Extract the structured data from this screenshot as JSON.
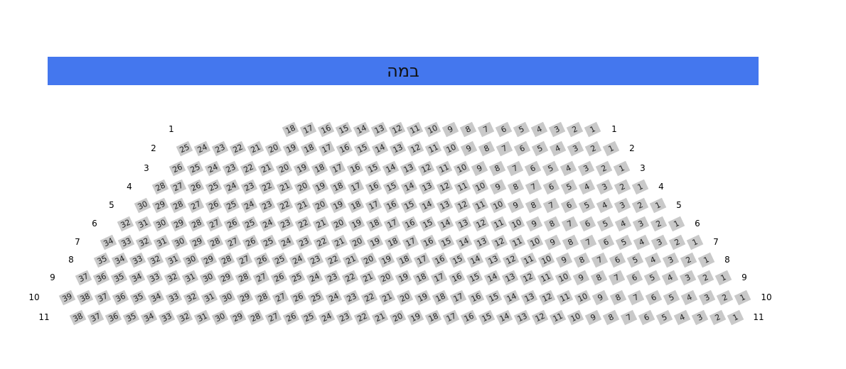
{
  "stage": {
    "label": "במה",
    "color": "#4477ee"
  },
  "seat_color": "#c9c9c9",
  "rows": [
    {
      "label": "1",
      "seats": [
        18,
        17,
        16,
        15,
        14,
        13,
        12,
        11,
        10,
        9,
        8,
        7,
        6,
        5,
        4,
        3,
        2,
        1
      ]
    },
    {
      "label": "2",
      "seats": [
        25,
        24,
        23,
        22,
        21,
        20,
        19,
        18,
        17,
        16,
        15,
        14,
        13,
        12,
        11,
        10,
        9,
        8,
        7,
        6,
        5,
        4,
        3,
        2,
        1
      ]
    },
    {
      "label": "3",
      "seats": [
        26,
        25,
        24,
        23,
        22,
        21,
        20,
        19,
        18,
        17,
        16,
        15,
        14,
        13,
        12,
        11,
        10,
        9,
        8,
        7,
        6,
        5,
        4,
        3,
        2,
        1
      ]
    },
    {
      "label": "4",
      "seats": [
        28,
        27,
        26,
        25,
        24,
        23,
        22,
        21,
        20,
        19,
        18,
        17,
        16,
        15,
        14,
        13,
        12,
        11,
        10,
        9,
        8,
        7,
        6,
        5,
        4,
        3,
        2,
        1
      ]
    },
    {
      "label": "5",
      "seats": [
        30,
        29,
        28,
        27,
        26,
        25,
        24,
        23,
        22,
        21,
        20,
        19,
        18,
        17,
        16,
        15,
        14,
        13,
        12,
        11,
        10,
        9,
        8,
        7,
        6,
        5,
        4,
        3,
        2,
        1
      ]
    },
    {
      "label": "6",
      "seats": [
        32,
        31,
        30,
        29,
        28,
        27,
        26,
        25,
        24,
        23,
        22,
        21,
        20,
        19,
        18,
        17,
        16,
        15,
        14,
        13,
        12,
        11,
        10,
        9,
        8,
        7,
        6,
        5,
        4,
        3,
        2,
        1
      ]
    },
    {
      "label": "7",
      "seats": [
        34,
        33,
        32,
        31,
        30,
        29,
        28,
        27,
        26,
        25,
        24,
        23,
        22,
        21,
        20,
        19,
        18,
        17,
        16,
        15,
        14,
        13,
        12,
        11,
        10,
        9,
        8,
        7,
        6,
        5,
        4,
        3,
        2,
        1
      ]
    },
    {
      "label": "8",
      "seats": [
        35,
        34,
        33,
        32,
        31,
        30,
        29,
        28,
        27,
        26,
        25,
        24,
        23,
        22,
        21,
        20,
        19,
        18,
        17,
        16,
        15,
        14,
        13,
        12,
        11,
        10,
        9,
        8,
        7,
        6,
        5,
        4,
        3,
        2,
        1
      ]
    },
    {
      "label": "9",
      "seats": [
        37,
        36,
        35,
        34,
        33,
        32,
        31,
        30,
        29,
        28,
        27,
        26,
        25,
        24,
        23,
        22,
        21,
        20,
        19,
        18,
        17,
        16,
        15,
        14,
        13,
        12,
        11,
        10,
        9,
        8,
        7,
        6,
        5,
        4,
        3,
        2,
        1
      ]
    },
    {
      "label": "10",
      "seats": [
        39,
        38,
        37,
        36,
        35,
        34,
        33,
        32,
        31,
        30,
        29,
        28,
        27,
        26,
        25,
        24,
        23,
        22,
        21,
        20,
        19,
        18,
        17,
        16,
        15,
        14,
        13,
        12,
        11,
        10,
        9,
        8,
        7,
        6,
        5,
        4,
        3,
        2,
        1
      ]
    },
    {
      "label": "11",
      "seats": [
        38,
        37,
        36,
        35,
        34,
        33,
        32,
        31,
        30,
        29,
        28,
        27,
        26,
        25,
        24,
        23,
        22,
        21,
        20,
        19,
        18,
        17,
        16,
        15,
        14,
        13,
        12,
        11,
        10,
        9,
        8,
        7,
        6,
        5,
        4,
        3,
        2,
        1
      ]
    }
  ]
}
